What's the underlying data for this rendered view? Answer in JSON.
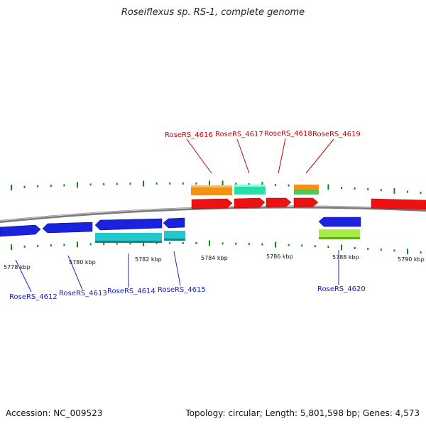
{
  "title": "Roseiflexus sp. RS-1, complete genome",
  "footer": {
    "accession": "Accession: NC_009523",
    "summary": "Topology: circular; Length: 5,801,598 bp; Genes: 4,573"
  },
  "axis_ticks": [
    "5778 kbp",
    "5780 kbp",
    "5782 kbp",
    "5784 kbp",
    "5786 kbp",
    "5788 kbp",
    "5790 kbp"
  ],
  "genes_top": [
    "RoseRS_4616",
    "RoseRS_4617",
    "RoseRS_4618",
    "RoseRS_4619"
  ],
  "genes_bottom": [
    "RoseRS_4612",
    "RoseRS_4613",
    "RoseRS_4614",
    "RoseRS_4615",
    "RoseRS_4620"
  ],
  "colors": {
    "forward_gene": "#ee1111",
    "reverse_gene": "#1a22dd",
    "label_top": "#cc0000",
    "label_bottom": "#1a22bb",
    "backbone": "#888888",
    "gc_tick": "#118811",
    "orange": "#f29218",
    "mint": "#22e0a8",
    "green": "#44cc55",
    "teal": "#22c8cc",
    "lime": "#a4ee44"
  }
}
